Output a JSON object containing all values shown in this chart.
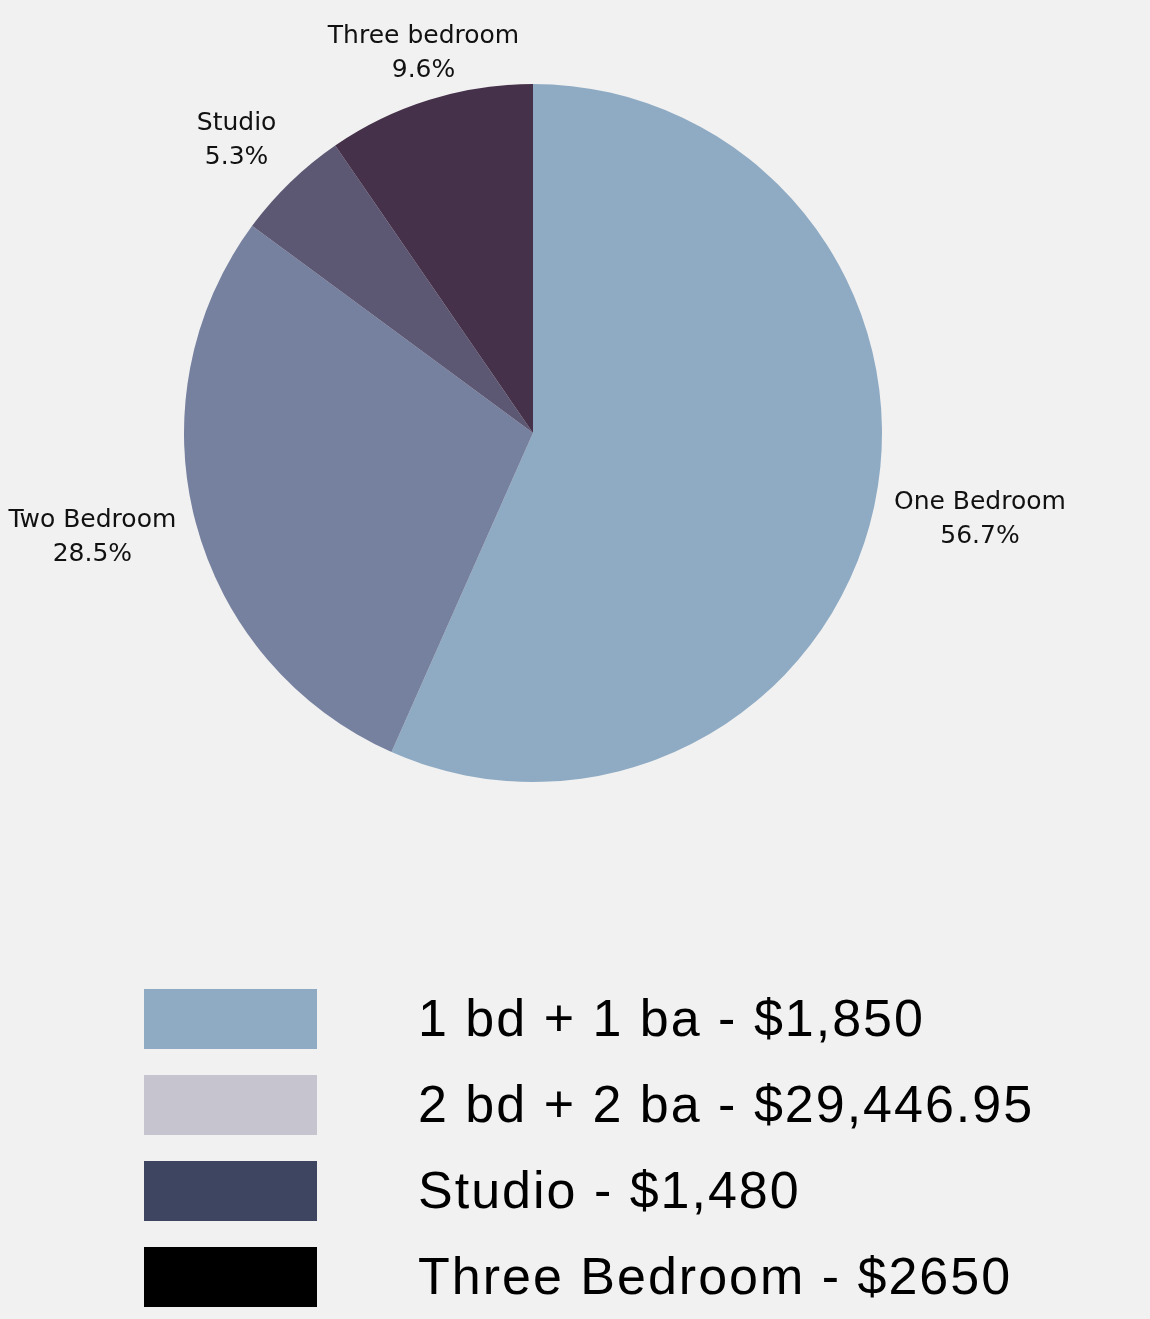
{
  "chart_data": {
    "type": "pie",
    "categories": [
      "One Bedroom",
      "Two Bedroom",
      "Studio",
      "Three bedroom"
    ],
    "values": [
      56.7,
      28.5,
      5.3,
      9.6
    ],
    "colors": [
      "#8fabc4",
      "#76809f",
      "#5c5773",
      "#46314a"
    ],
    "value_labels": [
      "56.7%",
      "28.5%",
      "5.3%",
      "9.6%"
    ],
    "legend": false,
    "annotations": [
      "1 bd + 1 ba - $1,850",
      "2 bd + 2 ba - $29,446.95",
      "Studio - $1,480",
      "Three Bedroom - $2650"
    ]
  }
}
